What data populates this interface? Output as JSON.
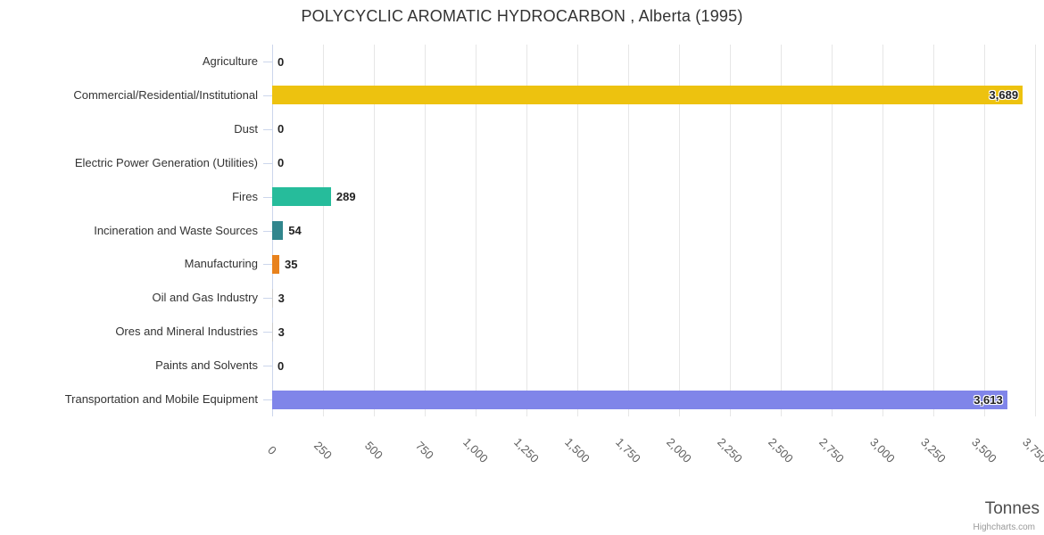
{
  "chart_data": {
    "type": "bar",
    "orientation": "horizontal",
    "title": "POLYCYCLIC AROMATIC HYDROCARBON , Alberta (1995)",
    "xlabel": "Tonnes",
    "credit": "Highcharts.com",
    "categories": [
      "Agriculture",
      "Commercial/Residential/Institutional",
      "Dust",
      "Electric Power Generation (Utilities)",
      "Fires",
      "Incineration and Waste Sources",
      "Manufacturing",
      "Oil and Gas Industry",
      "Ores and Mineral Industries",
      "Paints and Solvents",
      "Transportation and Mobile Equipment"
    ],
    "values": [
      0,
      3689,
      0,
      0,
      289,
      54,
      35,
      3,
      3,
      0,
      3613
    ],
    "value_labels": [
      "0",
      "3,689",
      "0",
      "0",
      "289",
      "54",
      "35",
      "3",
      "3",
      "0",
      "3,613"
    ],
    "bar_colors": [
      "#cccccc",
      "#EDC20F",
      "#cccccc",
      "#cccccc",
      "#26BC9B",
      "#31868D",
      "#E8821D",
      "#cccccc",
      "#cccccc",
      "#cccccc",
      "#8085E9"
    ],
    "xlim": [
      0,
      3750
    ],
    "x_tick_step": 250,
    "x_tick_labels": [
      "0",
      "250",
      "500",
      "750",
      "1,000",
      "1,250",
      "1,500",
      "1,750",
      "2,000",
      "2,250",
      "2,500",
      "2,750",
      "3,000",
      "3,250",
      "3,500",
      "3,750"
    ],
    "grid": true,
    "legend": false,
    "colors": {
      "grid": "#e6e6e6",
      "axis": "#ccd6eb",
      "title_text": "#333333",
      "category_text": "#333333",
      "tick_text": "#606060",
      "data_label_text": "#222222",
      "axis_title_text": "#4d4d4d",
      "credit_text": "#999999",
      "background": "#ffffff"
    }
  }
}
